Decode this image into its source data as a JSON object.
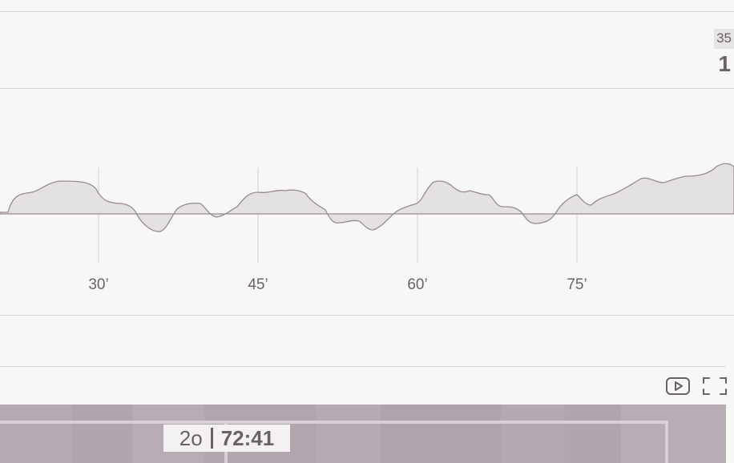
{
  "score_panel": {
    "small_badge": "35",
    "big_value": "1"
  },
  "momentum_chart": {
    "tick_labels": [
      "30’",
      "45’",
      "60’",
      "75’"
    ],
    "colors": {
      "fill": "#e4e1e2",
      "stroke": "#998c94",
      "gridline": "#d2d0cf",
      "tick_text": "#6b6168"
    }
  },
  "video_controls": {
    "play_icon": "play-box-icon",
    "fullscreen_icon": "fullscreen-icon"
  },
  "video_overlay": {
    "period": "2o",
    "clock": "72:41"
  }
}
